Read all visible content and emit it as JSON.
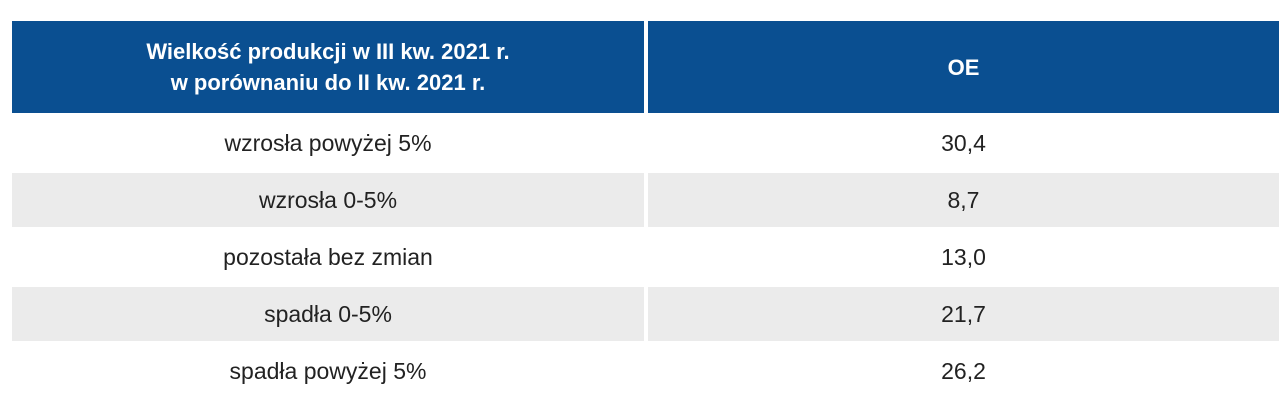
{
  "table": {
    "header": {
      "col1_line1": "Wielkość produkcji w III kw. 2021 r.",
      "col1_line2": "w porównaniu do II kw. 2021 r.",
      "col2": "OE"
    },
    "rows": [
      {
        "label": "wzrosła powyżej 5%",
        "value": "30,4"
      },
      {
        "label": "wzrosła 0-5%",
        "value": "8,7"
      },
      {
        "label": "pozostała bez zmian",
        "value": "13,0"
      },
      {
        "label": "spadła 0-5%",
        "value": "21,7"
      },
      {
        "label": "spadła powyżej 5%",
        "value": "26,2"
      }
    ]
  },
  "colors": {
    "header_bg": "#0a4f91",
    "header_text": "#ffffff",
    "stripe_bg": "#ebebeb",
    "body_text": "#222222"
  }
}
